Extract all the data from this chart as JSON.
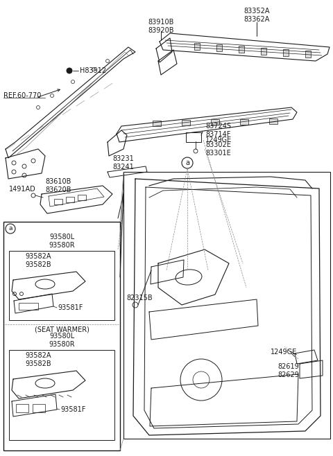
{
  "bg_color": "#ffffff",
  "line_color": "#1a1a1a",
  "text_color": "#1a1a1a",
  "gray_color": "#888888",
  "fig_width": 4.8,
  "fig_height": 6.58,
  "dpi": 100,
  "labels": {
    "ref": "REF.60-770",
    "H83912": "H83912",
    "83910B": "83910B\n83920B",
    "83352A": "83352A\n83362A",
    "83724S": "83724S\n83714F",
    "1249GE_top": "1249GE",
    "83302E": "83302E\n83301E",
    "83231": "83231\n83241",
    "1491AD": "1491AD",
    "83610B": "83610B\n83620B",
    "82315B": "82315B",
    "1249GE_bot": "1249GE",
    "82619": "82619\n82629",
    "box_a_label": "a",
    "93580L": "93580L\n93580R",
    "93582A_1": "93582A\n93582B",
    "93581F_1": "93581F",
    "seat_warmer": "(SEAT WARMER)",
    "93580L_2": "93580L\n93580R",
    "93582A_2": "93582A\n93582B",
    "93581F_2": "93581F",
    "circle_a": "a"
  }
}
